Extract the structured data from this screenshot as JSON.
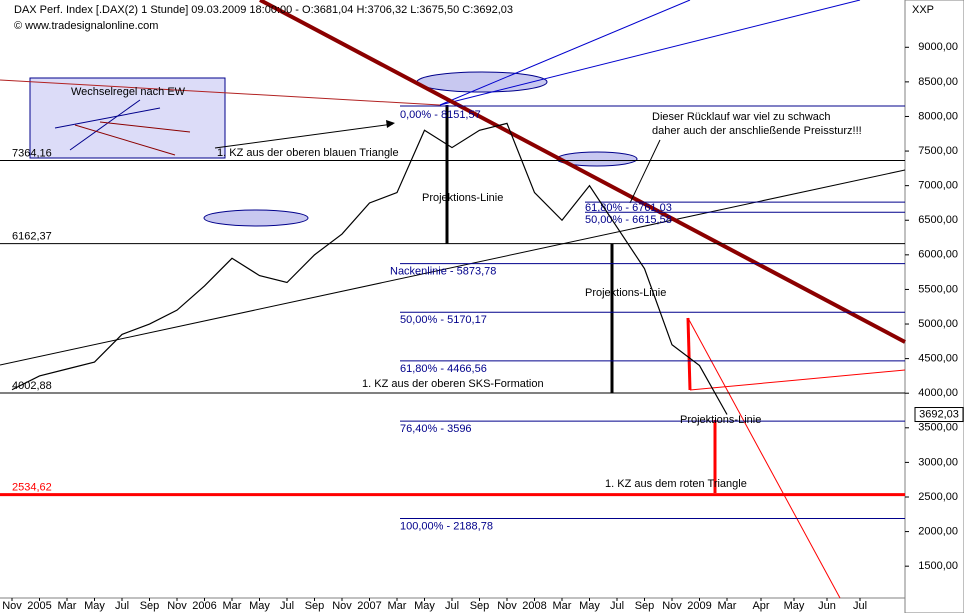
{
  "header": {
    "title": "DAX Perf. Index [.DAX(2)  1 Stunde] 09.03.2009 18:00:00 - O:3681,04 H:3706,32 L:3675,50 C:3692,03",
    "source": "© www.tradesignalonline.com",
    "corner": "XXP"
  },
  "chart_data": {
    "type": "line",
    "color": "#000000",
    "categories": [
      "Nov",
      "2005",
      "Mar",
      "May",
      "Jul",
      "Sep",
      "Nov",
      "2006",
      "Mar",
      "May",
      "Jul",
      "Sep",
      "Nov",
      "2007",
      "Mar",
      "May",
      "Jul",
      "Sep",
      "Nov",
      "2008",
      "Mar",
      "May",
      "Jul",
      "Sep",
      "Nov",
      "2009",
      "Mar",
      "Apr",
      "May",
      "Jun",
      "Jul"
    ],
    "values": [
      4050,
      4250,
      4350,
      4450,
      4850,
      5000,
      5200,
      5550,
      5950,
      5700,
      5600,
      6000,
      6300,
      6750,
      6900,
      7800,
      7550,
      7800,
      7900,
      6900,
      6500,
      7000,
      6400,
      5800,
      4700,
      4400,
      3692,
      null,
      null,
      null,
      null
    ],
    "last": {
      "value": 3692.03,
      "label": "3692,03"
    },
    "ylim": [
      1040,
      9640
    ],
    "yticks": [
      {
        "value": 1500,
        "label": "1500,00"
      },
      {
        "value": 2000,
        "label": "2000,00"
      },
      {
        "value": 2500,
        "label": "2500,00"
      },
      {
        "value": 3000,
        "label": "3000,00"
      },
      {
        "value": 3500,
        "label": "3500,00"
      },
      {
        "value": 4000,
        "label": "4000,00"
      },
      {
        "value": 4500,
        "label": "4500,00"
      },
      {
        "value": 5000,
        "label": "5000,00"
      },
      {
        "value": 5500,
        "label": "5500,00"
      },
      {
        "value": 6000,
        "label": "6000,00"
      },
      {
        "value": 6500,
        "label": "6500,00"
      },
      {
        "value": 7000,
        "label": "7000,00"
      },
      {
        "value": 7500,
        "label": "7500,00"
      },
      {
        "value": 8000,
        "label": "8000,00"
      },
      {
        "value": 8500,
        "label": "8500,00"
      },
      {
        "value": 9000,
        "label": "9000,00"
      }
    ],
    "levels": [
      {
        "value": 7364.16,
        "label": "7364,16",
        "color": "#000000"
      },
      {
        "value": 6162.37,
        "label": "6162,37",
        "color": "#000000"
      },
      {
        "value": 4002.88,
        "label": "4002,88",
        "color": "#000000"
      },
      {
        "value": 2534.62,
        "label": "2534,62",
        "color": "#ff0000"
      },
      {
        "value": 8151.57,
        "label": "0,00% - 8151,57",
        "color": "#00008b"
      },
      {
        "value": 6761.03,
        "label": "61,80% - 6761,03",
        "color": "#00008b"
      },
      {
        "value": 6615.58,
        "label": "50,00% - 6615,58",
        "color": "#00008b"
      },
      {
        "value": 5873.78,
        "label": "Nackenlinie - 5873,78",
        "color": "#00008b"
      },
      {
        "value": 5170.17,
        "label": "50,00% - 5170,17",
        "color": "#00008b"
      },
      {
        "value": 4466.56,
        "label": "61,80% - 4466,56",
        "color": "#00008b"
      },
      {
        "value": 3596,
        "label": "76,40% - 3596",
        "color": "#00008b"
      },
      {
        "value": 2188.78,
        "label": "100,00% - 2188,78",
        "color": "#00008b"
      }
    ],
    "annotations": [
      "Wechselregel nach EW",
      "1. KZ aus der oberen blauen Triangle",
      "Projektions-Linie",
      "Dieser Rücklauf war viel zu schwach",
      "daher auch der anschließende Preissturz!!!",
      "Projektions-Linie",
      "1. KZ aus der oberen SKS-Formation",
      "Projektions-Linie",
      "1. KZ aus dem roten Triangle"
    ]
  }
}
